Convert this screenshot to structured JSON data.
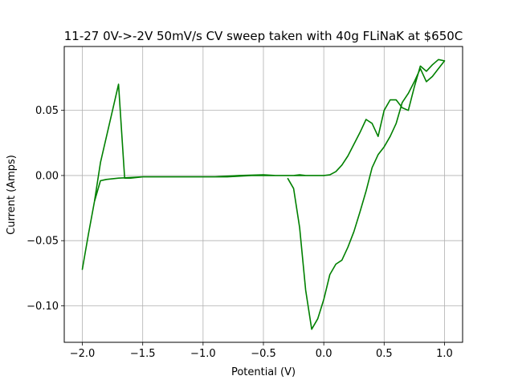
{
  "chart_data": {
    "type": "line",
    "title": "11-27 0V->-2V 50mV/s CV sweep taken with 40g FLiNaK at $650C",
    "xlabel": "Potential (V)",
    "ylabel": "Current (Amps)",
    "xlim": [
      -2.15,
      1.15
    ],
    "ylim": [
      -0.128,
      0.099
    ],
    "grid": true,
    "x_ticks": [
      -2.0,
      -1.5,
      -1.0,
      -0.5,
      0.0,
      0.5,
      1.0
    ],
    "x_tick_labels": [
      "−2.0",
      "−1.5",
      "−1.0",
      "−0.5",
      "0.0",
      "0.5",
      "1.0"
    ],
    "y_ticks": [
      -0.1,
      -0.05,
      0.0,
      0.05
    ],
    "y_tick_labels": [
      "−0.10",
      "−0.05",
      "0.00",
      "0.05"
    ],
    "colors": {
      "line": "#008000",
      "grid": "#b0b0b0",
      "axes": "#000000"
    },
    "series": [
      {
        "x": [
          0.0,
          -0.1,
          -0.2,
          -0.3,
          -0.4,
          -0.5,
          -0.6,
          -0.8,
          -1.0,
          -1.2,
          -1.4,
          -1.5,
          -1.6,
          -1.65,
          -1.7,
          -1.75,
          -1.8,
          -1.85,
          -1.9,
          -1.95,
          -2.0,
          -1.95,
          -1.9,
          -1.85,
          -1.8,
          -1.7,
          -1.6,
          -1.5,
          -1.3,
          -1.1,
          -0.9,
          -0.7,
          -0.5,
          -0.4,
          -0.3,
          -0.25,
          -0.2,
          -0.15,
          -0.1,
          -0.05,
          0.0,
          0.05,
          0.1,
          0.15,
          0.2,
          0.25,
          0.3,
          0.35,
          0.4,
          0.45,
          0.5,
          0.55,
          0.6,
          0.65,
          0.7,
          0.75,
          0.8,
          0.85,
          0.9,
          0.95,
          1.0,
          0.95,
          0.9,
          0.85,
          0.8,
          0.75,
          0.7,
          0.65,
          0.6,
          0.55,
          0.5,
          0.45,
          0.4,
          0.35,
          0.3,
          0.25,
          0.2,
          0.15,
          0.1,
          0.05,
          0.0,
          -0.05,
          -0.1,
          -0.15,
          -0.2,
          -0.25,
          -0.3
        ],
        "y": [
          0.0,
          0.0,
          0.0,
          0.0,
          0.0,
          0.0,
          0.0,
          -0.001,
          -0.001,
          -0.001,
          -0.001,
          -0.001,
          -0.002,
          -0.002,
          0.07,
          0.05,
          0.03,
          0.01,
          -0.02,
          -0.045,
          -0.072,
          -0.045,
          -0.02,
          -0.004,
          -0.003,
          -0.002,
          -0.0015,
          -0.001,
          -0.001,
          -0.001,
          -0.001,
          0.0,
          0.0005,
          0.0,
          0.0,
          0.0,
          0.0005,
          0.0,
          0.0,
          0.0,
          0.0,
          0.0005,
          0.003,
          0.008,
          0.015,
          0.024,
          0.033,
          0.043,
          0.04,
          0.03,
          0.05,
          0.058,
          0.058,
          0.052,
          0.05,
          0.068,
          0.084,
          0.08,
          0.085,
          0.089,
          0.088,
          0.082,
          0.076,
          0.072,
          0.082,
          0.072,
          0.063,
          0.056,
          0.04,
          0.03,
          0.022,
          0.016,
          0.006,
          -0.012,
          -0.028,
          -0.043,
          -0.055,
          -0.065,
          -0.068,
          -0.076,
          -0.095,
          -0.11,
          -0.118,
          -0.088,
          -0.04,
          -0.01,
          -0.002
        ]
      }
    ]
  }
}
